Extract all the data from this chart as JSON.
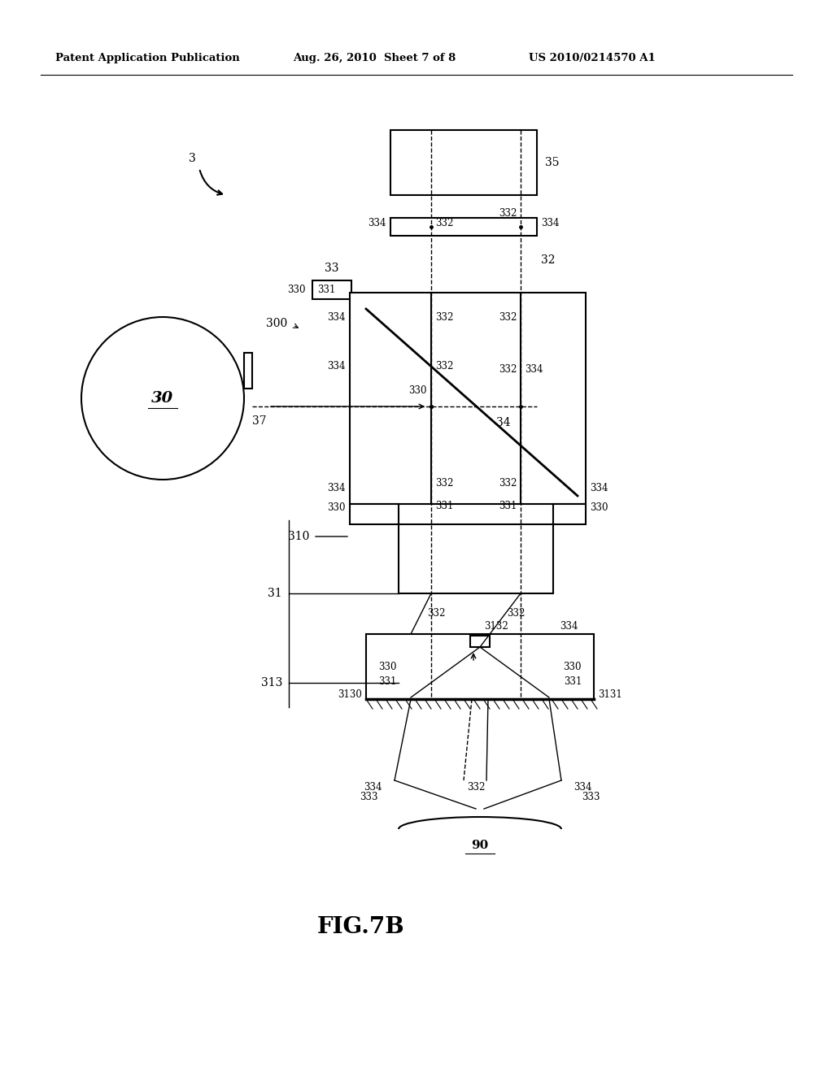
{
  "bg_color": "#ffffff",
  "header_left": "Patent Application Publication",
  "header_mid": "Aug. 26, 2010  Sheet 7 of 8",
  "header_right": "US 2010/0214570 A1",
  "caption": "FIG.7B"
}
